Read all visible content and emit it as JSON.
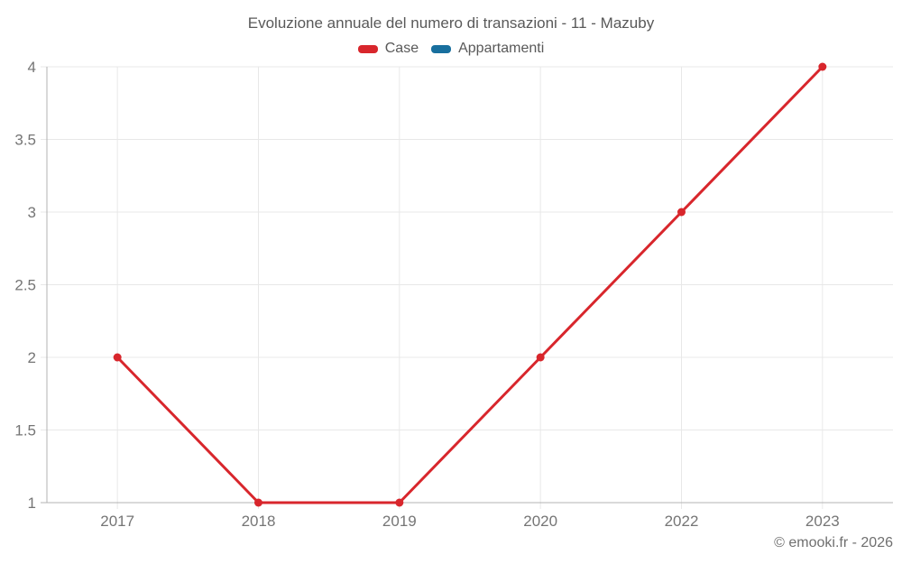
{
  "header": {
    "title": "Evoluzione annuale del numero di transazioni - 11 - Mazuby"
  },
  "footer": {
    "credit": "© emooki.fr - 2026"
  },
  "chart_data": {
    "type": "line",
    "title": "Evoluzione annuale del numero di transazioni - 11 - Mazuby",
    "categories": [
      "2017",
      "2018",
      "2019",
      "2020",
      "2022",
      "2023"
    ],
    "series": [
      {
        "name": "Case",
        "color": "#d8262c",
        "values": [
          2,
          1,
          1,
          2,
          3,
          4
        ]
      },
      {
        "name": "Appartamenti",
        "color": "#186f9e",
        "values": []
      }
    ],
    "xlabel": "",
    "ylabel": "",
    "ylim": [
      1,
      4
    ],
    "yticks": [
      1,
      1.5,
      2,
      2.5,
      3,
      3.5,
      4
    ],
    "grid": true,
    "legend_position": "top",
    "colors": {
      "grid_line": "#e8e8e8",
      "axis_line": "#b3b3b3",
      "tick_label": "#757575",
      "title_text": "#595959"
    }
  }
}
